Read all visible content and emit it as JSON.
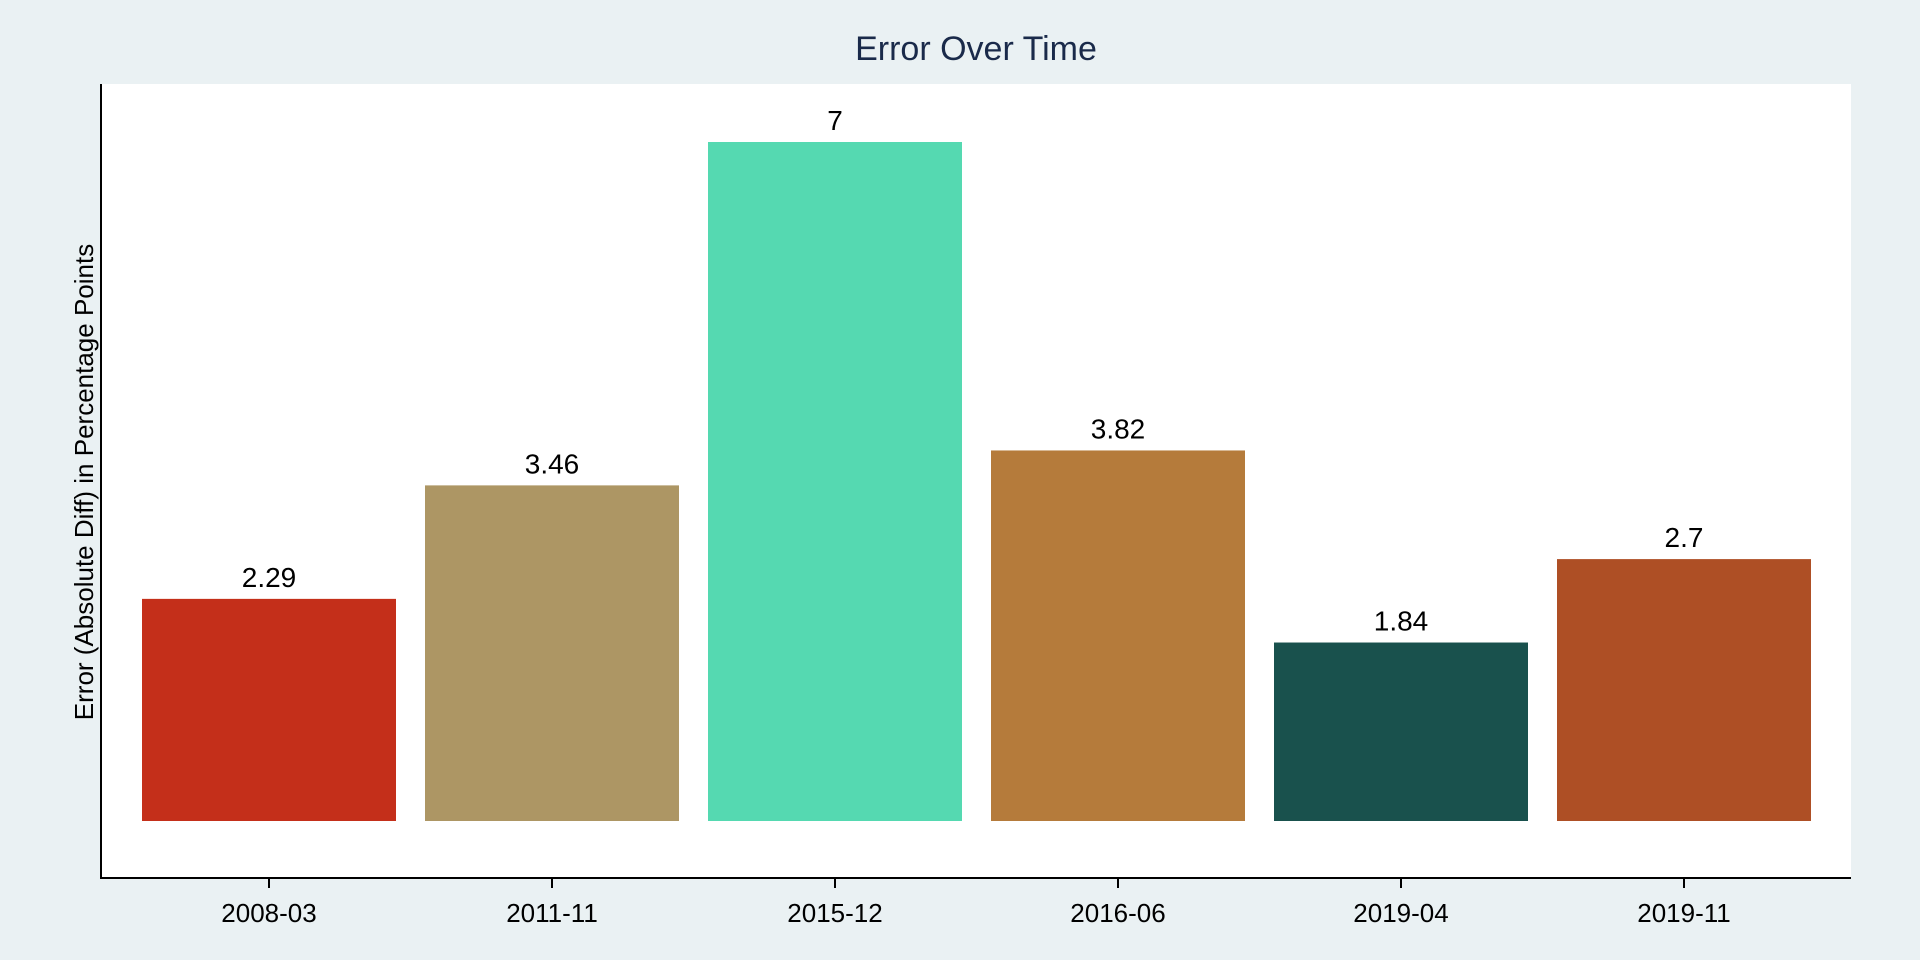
{
  "chart_data": {
    "type": "bar",
    "title": "Error Over Time",
    "xlabel": "",
    "ylabel": "Error (Absolute Diff) in Percentage Points",
    "categories": [
      "2008-03",
      "2011-11",
      "2015-12",
      "2016-06",
      "2019-04",
      "2019-11"
    ],
    "values": [
      2.29,
      3.46,
      7,
      3.82,
      1.84,
      2.7
    ],
    "value_labels": [
      "2.29",
      "3.46",
      "7",
      "3.82",
      "1.84",
      "2.7"
    ],
    "colors": [
      "#c42f1a",
      "#ad9664",
      "#55d9b1",
      "#b57b3b",
      "#19514d",
      "#ae4f25"
    ],
    "ylim": [
      0,
      7
    ],
    "grid": false,
    "legend": "none",
    "y_ticks_shown": false,
    "background": "#eaf1f3",
    "plot_background": "#ffffff"
  }
}
